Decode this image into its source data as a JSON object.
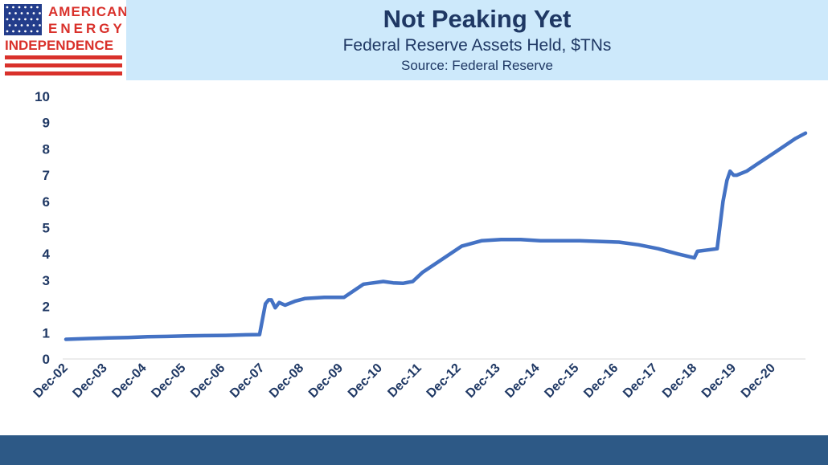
{
  "header": {
    "logo_lines": [
      "AMERICAN",
      "ENERGY",
      "INDEPENDENCE"
    ],
    "title": "Not Peaking Yet",
    "subtitle": "Federal Reserve Assets Held, $TNs",
    "source": "Source: Federal Reserve"
  },
  "colors": {
    "header_band": "#cde9fb",
    "title_text": "#1f3864",
    "series_line": "#4472c4",
    "footer_band": "#2d5986",
    "logo_red": "#d9312b",
    "logo_blue": "#233d8b"
  },
  "chart_data": {
    "type": "line",
    "title": "Not Peaking Yet",
    "subtitle": "Federal Reserve Assets Held, $TNs",
    "source": "Source: Federal Reserve",
    "xlabel": "",
    "ylabel": "",
    "ylim": [
      0,
      10
    ],
    "yticks": [
      0,
      1,
      2,
      3,
      4,
      5,
      6,
      7,
      8,
      9,
      10
    ],
    "xlim": [
      2002.92,
      2021.75
    ],
    "xticks": [
      "Dec-02",
      "Dec-03",
      "Dec-04",
      "Dec-05",
      "Dec-06",
      "Dec-07",
      "Dec-08",
      "Dec-09",
      "Dec-10",
      "Dec-11",
      "Dec-12",
      "Dec-13",
      "Dec-14",
      "Dec-15",
      "Dec-16",
      "Dec-17",
      "Dec-18",
      "Dec-19",
      "Dec-20"
    ],
    "grid": false,
    "legend": "none",
    "series": [
      {
        "x": [
          2002.92,
          2003.5,
          2004.0,
          2004.5,
          2005.0,
          2005.5,
          2006.0,
          2006.5,
          2007.0,
          2007.5,
          2007.85,
          2008.0,
          2008.08,
          2008.15,
          2008.25,
          2008.35,
          2008.5,
          2008.75,
          2009.0,
          2009.5,
          2010.0,
          2010.5,
          2010.75,
          2011.0,
          2011.25,
          2011.5,
          2011.75,
          2012.0,
          2012.5,
          2013.0,
          2013.5,
          2014.0,
          2014.5,
          2015.0,
          2016.0,
          2017.0,
          2017.5,
          2018.0,
          2018.5,
          2018.92,
          2019.0,
          2019.25,
          2019.5,
          2019.65,
          2019.75,
          2019.83,
          2019.92,
          2020.0,
          2020.25,
          2020.5,
          2021.0,
          2021.5,
          2021.75
        ],
        "values": [
          0.75,
          0.78,
          0.8,
          0.82,
          0.85,
          0.86,
          0.88,
          0.89,
          0.9,
          0.92,
          0.93,
          2.1,
          2.25,
          2.25,
          1.95,
          2.15,
          2.05,
          2.2,
          2.3,
          2.35,
          2.35,
          2.85,
          2.9,
          2.95,
          2.9,
          2.88,
          2.95,
          3.3,
          3.8,
          4.3,
          4.5,
          4.55,
          4.55,
          4.5,
          4.5,
          4.45,
          4.35,
          4.2,
          4.0,
          3.85,
          4.1,
          4.15,
          4.2,
          6.0,
          6.8,
          7.15,
          7.0,
          7.0,
          7.15,
          7.4,
          7.9,
          8.4,
          8.6
        ]
      }
    ]
  }
}
